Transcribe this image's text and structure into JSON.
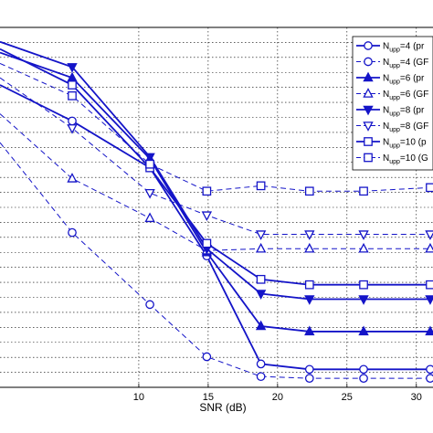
{
  "chart_data": {
    "type": "line",
    "xlabel": "SNR (dB)",
    "ylabel": "",
    "title": "",
    "xlim": [
      0,
      31.2
    ],
    "ylim": [
      0,
      1
    ],
    "x_ticks": [
      10,
      15,
      20,
      25,
      30
    ],
    "x_tick_labels": [
      "10",
      "15",
      "20",
      "25",
      "30"
    ],
    "y_tick_count": 24,
    "grid": true,
    "legend_placement": "top-right",
    "colors": {
      "series": "#1414c8",
      "marker_fill": "#ffffff",
      "grid": "#000000"
    },
    "series": [
      {
        "name": "N_upp=4 (pr…",
        "sub": "upp",
        "pre": "N",
        "post": "=4 (pr",
        "style": "solid",
        "marker": "circle",
        "x": [
          0,
          5.2,
          10.8,
          14.9,
          18.8,
          22.3,
          26.2,
          31
        ],
        "y": [
          0.84,
          0.74,
          0.61,
          0.365,
          0.065,
          0.05,
          0.05,
          0.05
        ]
      },
      {
        "name": "N_upp=4 (GF…",
        "sub": "upp",
        "pre": "N",
        "post": "=4 (GF",
        "style": "dashed",
        "marker": "circle",
        "x": [
          0,
          5.2,
          10.8,
          14.9,
          18.8,
          22.3,
          26.2,
          31
        ],
        "y": [
          0.68,
          0.43,
          0.23,
          0.085,
          0.03,
          0.025,
          0.025,
          0.025
        ]
      },
      {
        "name": "N_upp=6 (pr…",
        "sub": "upp",
        "pre": "N",
        "post": "=6 (pr",
        "style": "solid",
        "marker": "triangle-up",
        "x": [
          0,
          5.2,
          10.8,
          14.9,
          18.8,
          22.3,
          26.2,
          31
        ],
        "y": [
          0.93,
          0.86,
          0.635,
          0.375,
          0.17,
          0.155,
          0.155,
          0.155
        ]
      },
      {
        "name": "N_upp=6 (GF…",
        "sub": "upp",
        "pre": "N",
        "post": "=6 (GF",
        "style": "dashed",
        "marker": "triangle-up",
        "x": [
          0,
          5.2,
          10.8,
          14.9,
          18.8,
          22.3,
          26.2,
          31
        ],
        "y": [
          0.76,
          0.58,
          0.47,
          0.38,
          0.385,
          0.385,
          0.385,
          0.385
        ]
      },
      {
        "name": "N_upp=8 (pr…",
        "sub": "upp",
        "pre": "N",
        "post": "=8 (pr",
        "style": "solid",
        "marker": "triangle-down",
        "x": [
          0,
          5.2,
          10.8,
          14.9,
          18.8,
          22.3,
          26.2,
          31
        ],
        "y": [
          0.96,
          0.89,
          0.64,
          0.385,
          0.26,
          0.245,
          0.245,
          0.245
        ]
      },
      {
        "name": "N_upp=8 (GF…",
        "sub": "upp",
        "pre": "N",
        "post": "=8 (GF",
        "style": "dashed",
        "marker": "triangle-down",
        "x": [
          0,
          5.2,
          10.8,
          14.9,
          18.8,
          22.3,
          26.2,
          31
        ],
        "y": [
          0.86,
          0.72,
          0.54,
          0.478,
          0.425,
          0.425,
          0.425,
          0.425
        ]
      },
      {
        "name": "N_upp=10 (p…",
        "sub": "upp",
        "pre": "N",
        "post": "=10 (p",
        "style": "solid",
        "marker": "square",
        "x": [
          0,
          5.2,
          10.8,
          14.9,
          18.8,
          22.3,
          26.2,
          31
        ],
        "y": [
          0.94,
          0.84,
          0.61,
          0.4,
          0.3,
          0.285,
          0.285,
          0.285
        ]
      },
      {
        "name": "N_upp=10 (G…",
        "sub": "upp",
        "pre": "N",
        "post": "=10 (G",
        "style": "dashed",
        "marker": "square",
        "x": [
          0,
          5.2,
          10.8,
          14.9,
          18.8,
          22.3,
          26.2,
          31
        ],
        "y": [
          0.9,
          0.81,
          0.62,
          0.545,
          0.56,
          0.545,
          0.545,
          0.555
        ]
      }
    ]
  }
}
